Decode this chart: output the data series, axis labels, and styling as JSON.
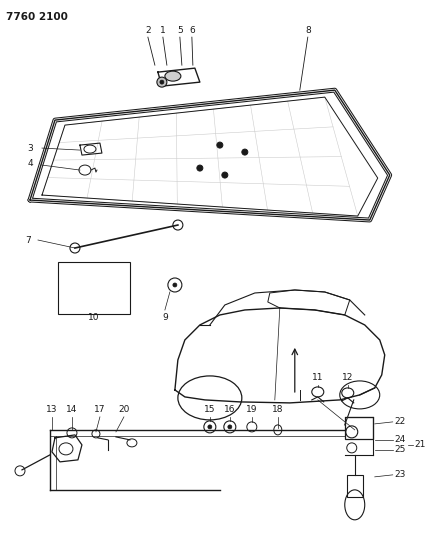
{
  "title": "7760 2100",
  "bg_color": "#ffffff",
  "line_color": "#1a1a1a",
  "fig_width": 4.28,
  "fig_height": 5.33,
  "dpi": 100
}
